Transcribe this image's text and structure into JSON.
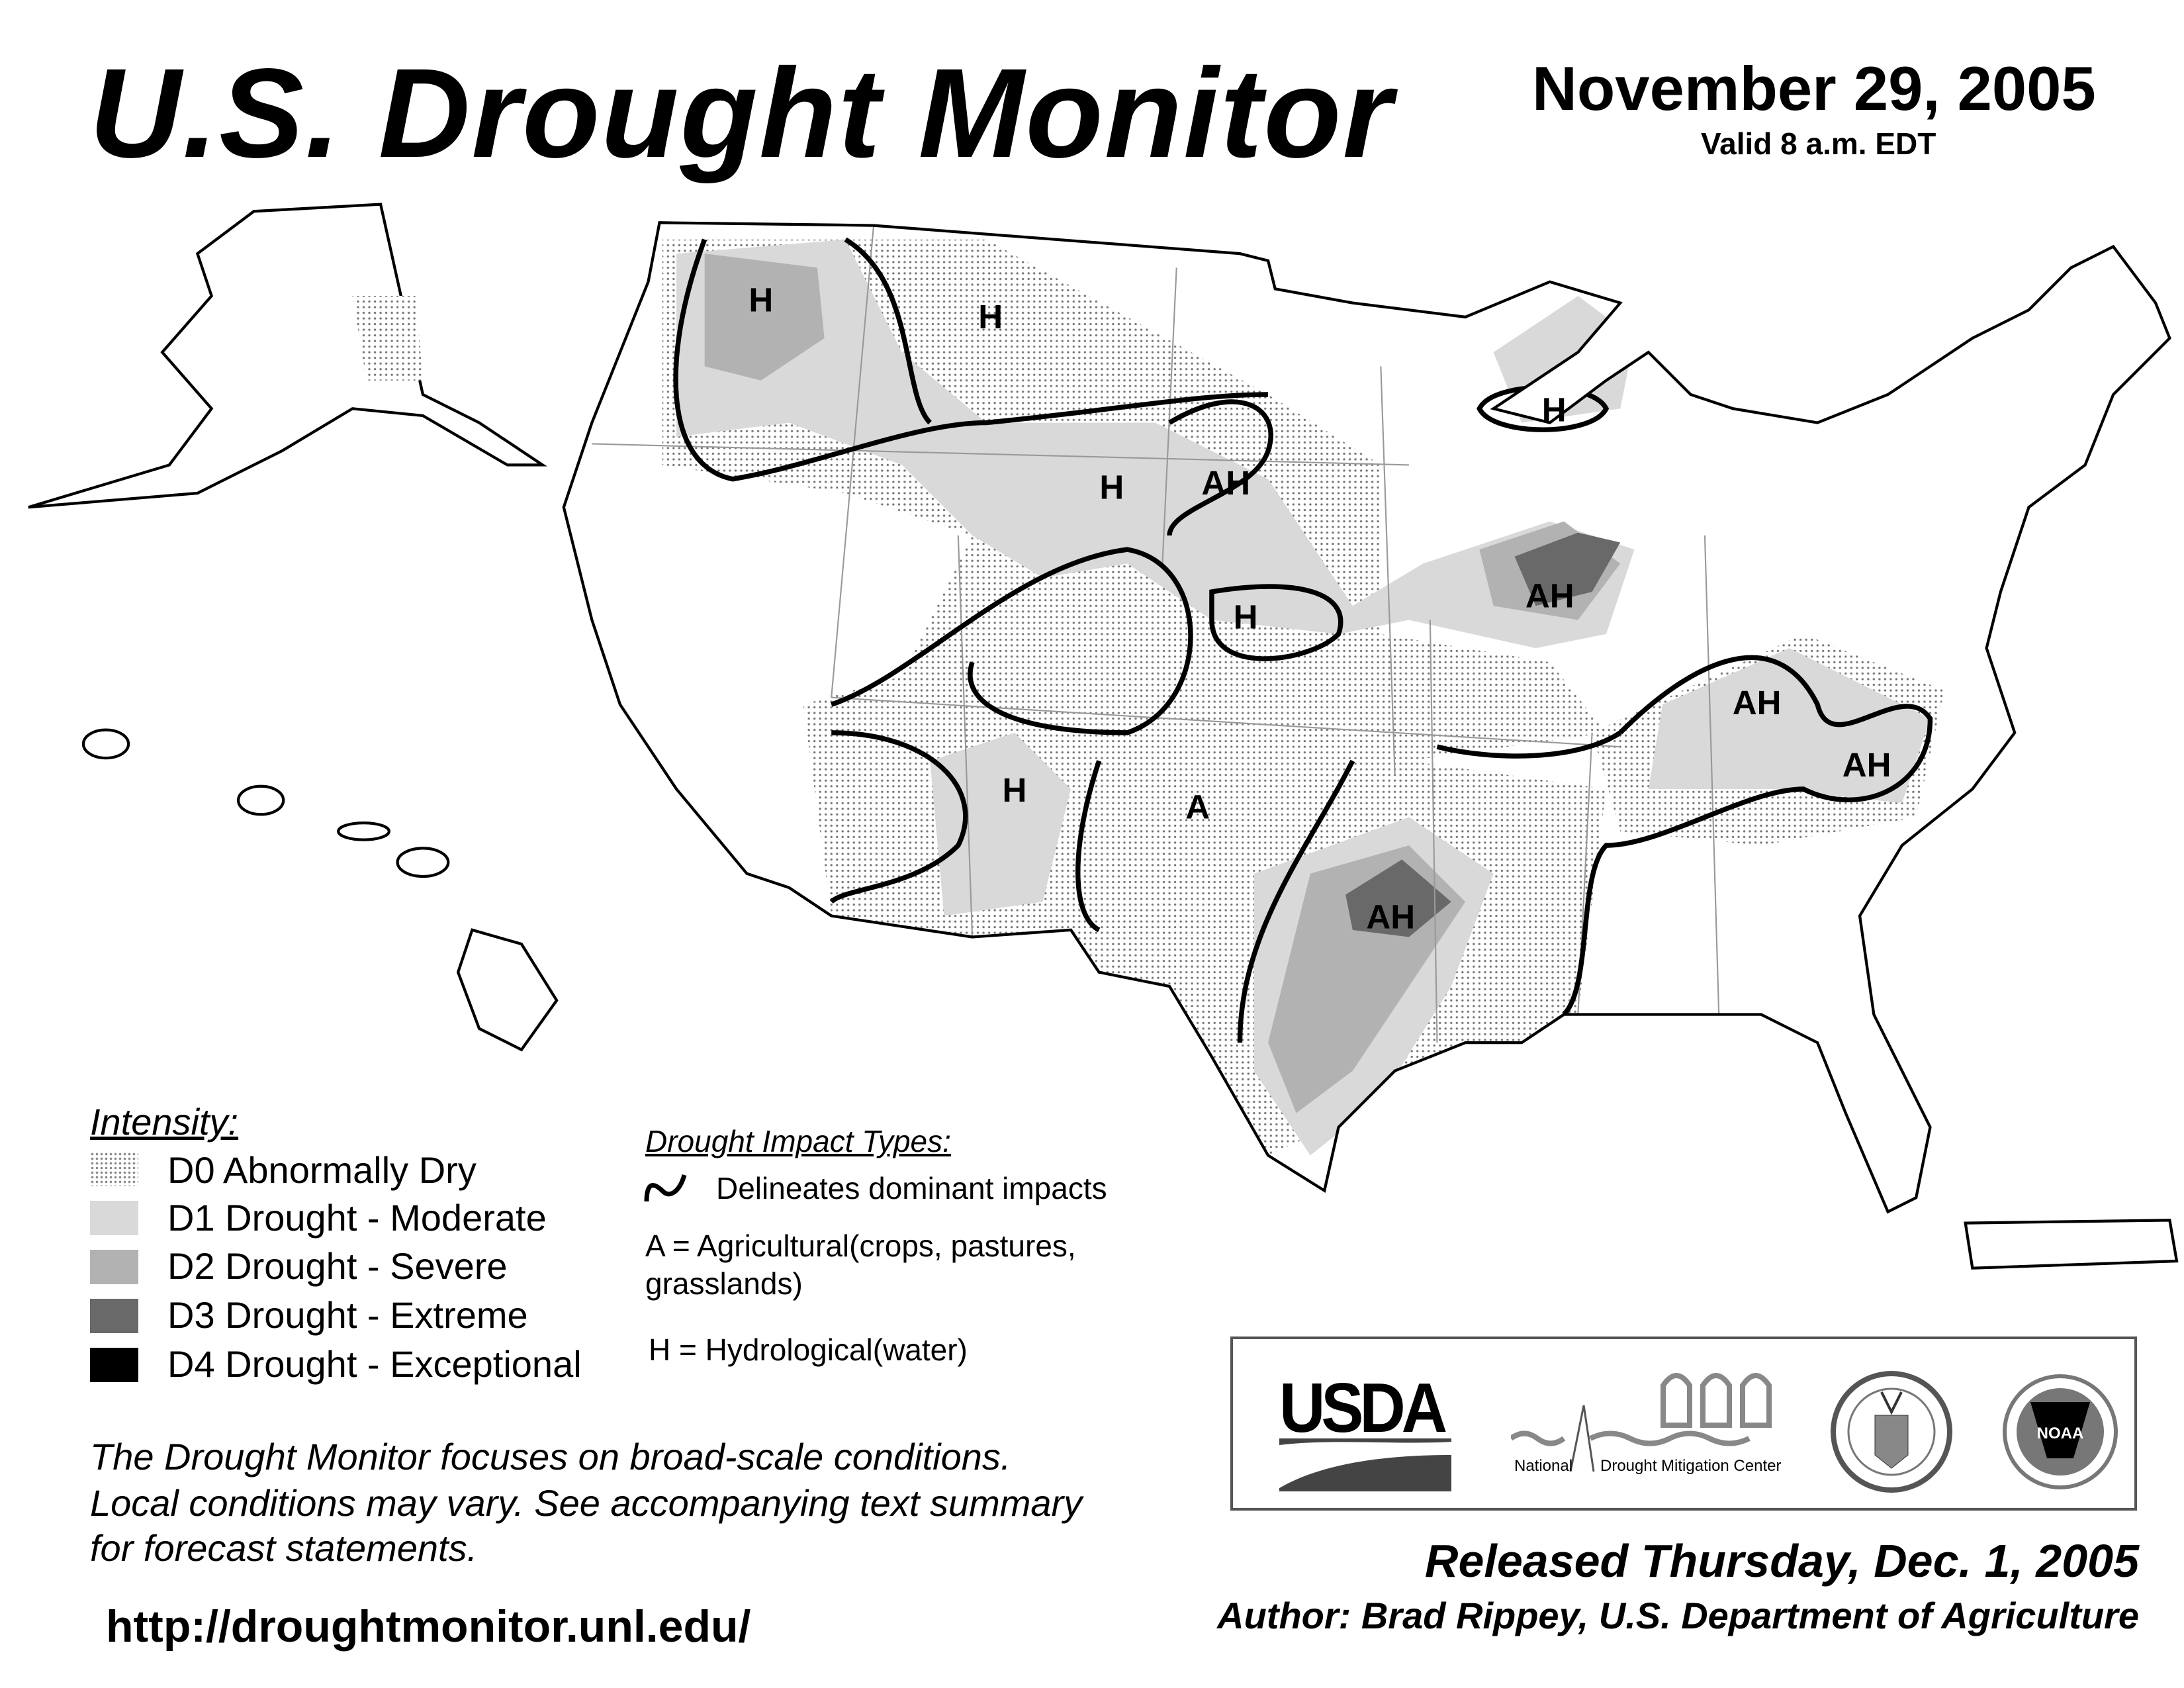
{
  "header": {
    "title": "U.S. Drought Monitor",
    "date": "November 29, 2005",
    "valid": "Valid 8 a.m. EDT"
  },
  "map": {
    "labels": [
      "H",
      "H",
      "H",
      "H",
      "AH",
      "H",
      "AH",
      "AH",
      "AH",
      "H",
      "A",
      "AH"
    ]
  },
  "legend": {
    "title": "Intensity:",
    "items": [
      {
        "label": "D0 Abnormally Dry",
        "color": "#ffffff"
      },
      {
        "label": "D1 Drought - Moderate",
        "color": "#d9d9d9"
      },
      {
        "label": "D2 Drought - Severe",
        "color": "#b2b2b2"
      },
      {
        "label": "D3 Drought - Extreme",
        "color": "#696969"
      },
      {
        "label": "D4 Drought - Exceptional",
        "color": "#000000"
      }
    ]
  },
  "impacts": {
    "title": "Drought Impact Types:",
    "line": "Delineates dominant impacts",
    "a_line1": "A = Agricultural(crops, pastures,",
    "a_line2": "grasslands)",
    "h": "H = Hydrological(water)"
  },
  "note": {
    "line1": "The Drought Monitor focuses on broad-scale conditions.",
    "line2": "Local conditions may vary. See accompanying text summary",
    "line3": "for forecast statements."
  },
  "url": "http://droughtmonitor.unl.edu/",
  "logos": {
    "usda": "USDA",
    "ndmc_left": "National",
    "ndmc_right": "Drought Mitigation Center",
    "noaa": "NOAA"
  },
  "footer": {
    "released": "Released Thursday, Dec. 1, 2005",
    "author": "Author: Brad Rippey, U.S. Department of Agriculture"
  }
}
